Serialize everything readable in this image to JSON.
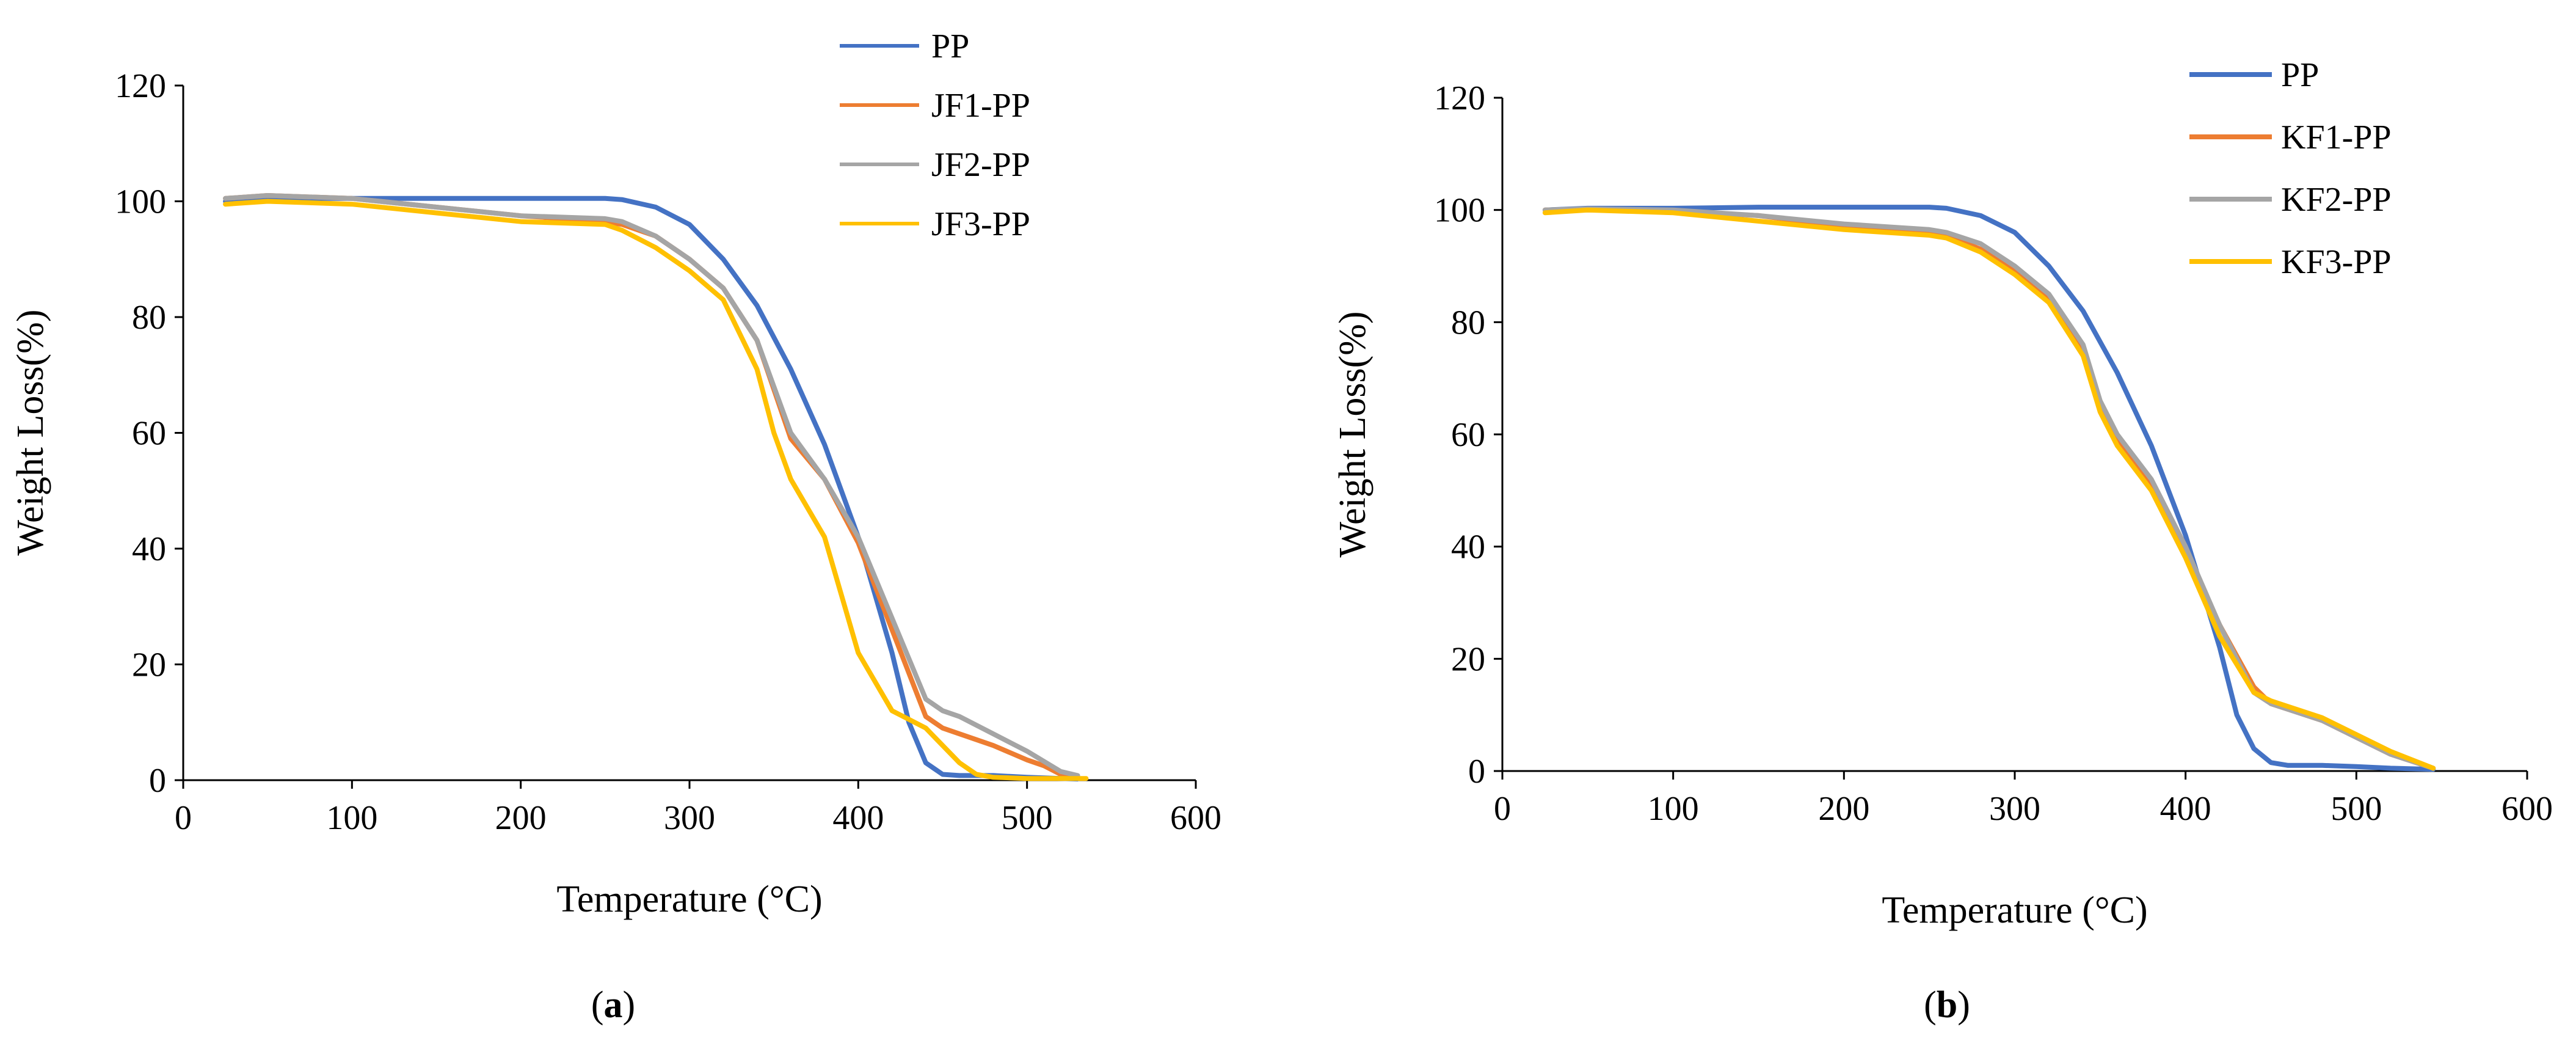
{
  "chart_data": [
    {
      "type": "line",
      "caption": "(a)",
      "caption_letter": "a",
      "xlabel": "Temperature (°C)",
      "ylabel": "Weight Loss(%)",
      "xlim": [
        0,
        600
      ],
      "ylim": [
        0,
        120
      ],
      "xticks": [
        0,
        100,
        200,
        300,
        400,
        500,
        600
      ],
      "yticks": [
        0,
        20,
        40,
        60,
        80,
        100,
        120
      ],
      "legend_position": "top-right",
      "series": [
        {
          "name": "PP",
          "color": "#4472C4",
          "x": [
            25,
            50,
            100,
            150,
            200,
            250,
            260,
            280,
            300,
            320,
            340,
            360,
            380,
            400,
            420,
            430,
            440,
            450,
            460,
            480,
            500,
            520,
            530
          ],
          "y": [
            100,
            100.5,
            100.5,
            100.5,
            100.5,
            100.5,
            100.3,
            99,
            96,
            90,
            82,
            71,
            58,
            42,
            22,
            10,
            3,
            1,
            0.8,
            0.8,
            0.5,
            0.3,
            0.2
          ]
        },
        {
          "name": "JF1-PP",
          "color": "#ED7D31",
          "x": [
            25,
            50,
            100,
            150,
            200,
            250,
            260,
            280,
            300,
            320,
            340,
            360,
            380,
            400,
            420,
            440,
            450,
            460,
            480,
            500,
            510,
            520,
            530
          ],
          "y": [
            100.5,
            101,
            100.5,
            99,
            97.5,
            96.5,
            96,
            94,
            90,
            85,
            76,
            59,
            52,
            41,
            26,
            11,
            9,
            8,
            6,
            3.5,
            2.5,
            1,
            0.5
          ]
        },
        {
          "name": "JF2-PP",
          "color": "#A5A5A5",
          "x": [
            25,
            50,
            100,
            150,
            200,
            250,
            260,
            280,
            300,
            320,
            340,
            360,
            380,
            400,
            420,
            440,
            450,
            460,
            480,
            500,
            520,
            530
          ],
          "y": [
            100.5,
            101,
            100.5,
            99,
            97.5,
            97,
            96.5,
            94,
            90,
            85,
            76,
            60,
            52,
            42,
            28,
            14,
            12,
            11,
            8,
            5,
            1.5,
            0.8
          ]
        },
        {
          "name": "JF3-PP",
          "color": "#FFC000",
          "x": [
            25,
            50,
            100,
            150,
            200,
            250,
            260,
            280,
            300,
            320,
            340,
            350,
            360,
            380,
            400,
            420,
            440,
            450,
            460,
            470,
            480,
            500,
            520,
            535
          ],
          "y": [
            99.5,
            100,
            99.5,
            98,
            96.5,
            96,
            95,
            92,
            88,
            83,
            71,
            60,
            52,
            42,
            22,
            12,
            9,
            6,
            3,
            1,
            0.5,
            0.3,
            0.3,
            0.3
          ]
        }
      ]
    },
    {
      "type": "line",
      "caption": "(b)",
      "caption_letter": "b",
      "xlabel": "Temperature (°C)",
      "ylabel": "Weight Loss(%)",
      "xlim": [
        0,
        600
      ],
      "ylim": [
        0,
        120
      ],
      "xticks": [
        0,
        100,
        200,
        300,
        400,
        500,
        600
      ],
      "yticks": [
        0,
        20,
        40,
        60,
        80,
        100,
        120
      ],
      "legend_position": "top-right",
      "series": [
        {
          "name": "PP",
          "color": "#4472C4",
          "x": [
            25,
            50,
            100,
            150,
            200,
            250,
            260,
            280,
            300,
            320,
            340,
            360,
            380,
            400,
            420,
            430,
            440,
            450,
            460,
            480,
            500,
            520,
            545
          ],
          "y": [
            100,
            100.3,
            100.3,
            100.5,
            100.5,
            100.5,
            100.3,
            99,
            96,
            90,
            82,
            71,
            58,
            42,
            22,
            10,
            4,
            1.5,
            1,
            1,
            0.8,
            0.5,
            0.3
          ]
        },
        {
          "name": "KF1-PP",
          "color": "#ED7D31",
          "x": [
            25,
            50,
            100,
            150,
            200,
            250,
            260,
            280,
            300,
            320,
            340,
            350,
            360,
            380,
            400,
            420,
            440,
            450,
            460,
            480,
            500,
            520,
            545
          ],
          "y": [
            100,
            100,
            99.8,
            99,
            97,
            96,
            95.5,
            93,
            89,
            84,
            75,
            65,
            59,
            51,
            39,
            26,
            15,
            12,
            11,
            9,
            6,
            3,
            0.5
          ]
        },
        {
          "name": "KF2-PP",
          "color": "#A5A5A5",
          "x": [
            25,
            50,
            100,
            150,
            200,
            250,
            260,
            280,
            300,
            320,
            340,
            350,
            360,
            380,
            400,
            420,
            440,
            450,
            460,
            480,
            500,
            520,
            545
          ],
          "y": [
            100,
            100.2,
            100,
            99,
            97.5,
            96.5,
            96,
            94,
            90,
            85,
            76,
            66,
            60,
            52,
            40,
            26,
            14,
            12,
            11,
            9,
            6,
            3,
            0.5
          ]
        },
        {
          "name": "KF3-PP",
          "color": "#FFC000",
          "x": [
            25,
            50,
            100,
            150,
            200,
            250,
            260,
            280,
            300,
            320,
            340,
            350,
            360,
            380,
            400,
            420,
            440,
            450,
            460,
            480,
            500,
            520,
            545
          ],
          "y": [
            99.5,
            100,
            99.5,
            98,
            96.5,
            95.5,
            95,
            92.5,
            88.5,
            83.5,
            74,
            64,
            58,
            50,
            38,
            24,
            14,
            12.5,
            11.5,
            9.5,
            6.5,
            3.5,
            0.5
          ]
        }
      ]
    }
  ]
}
